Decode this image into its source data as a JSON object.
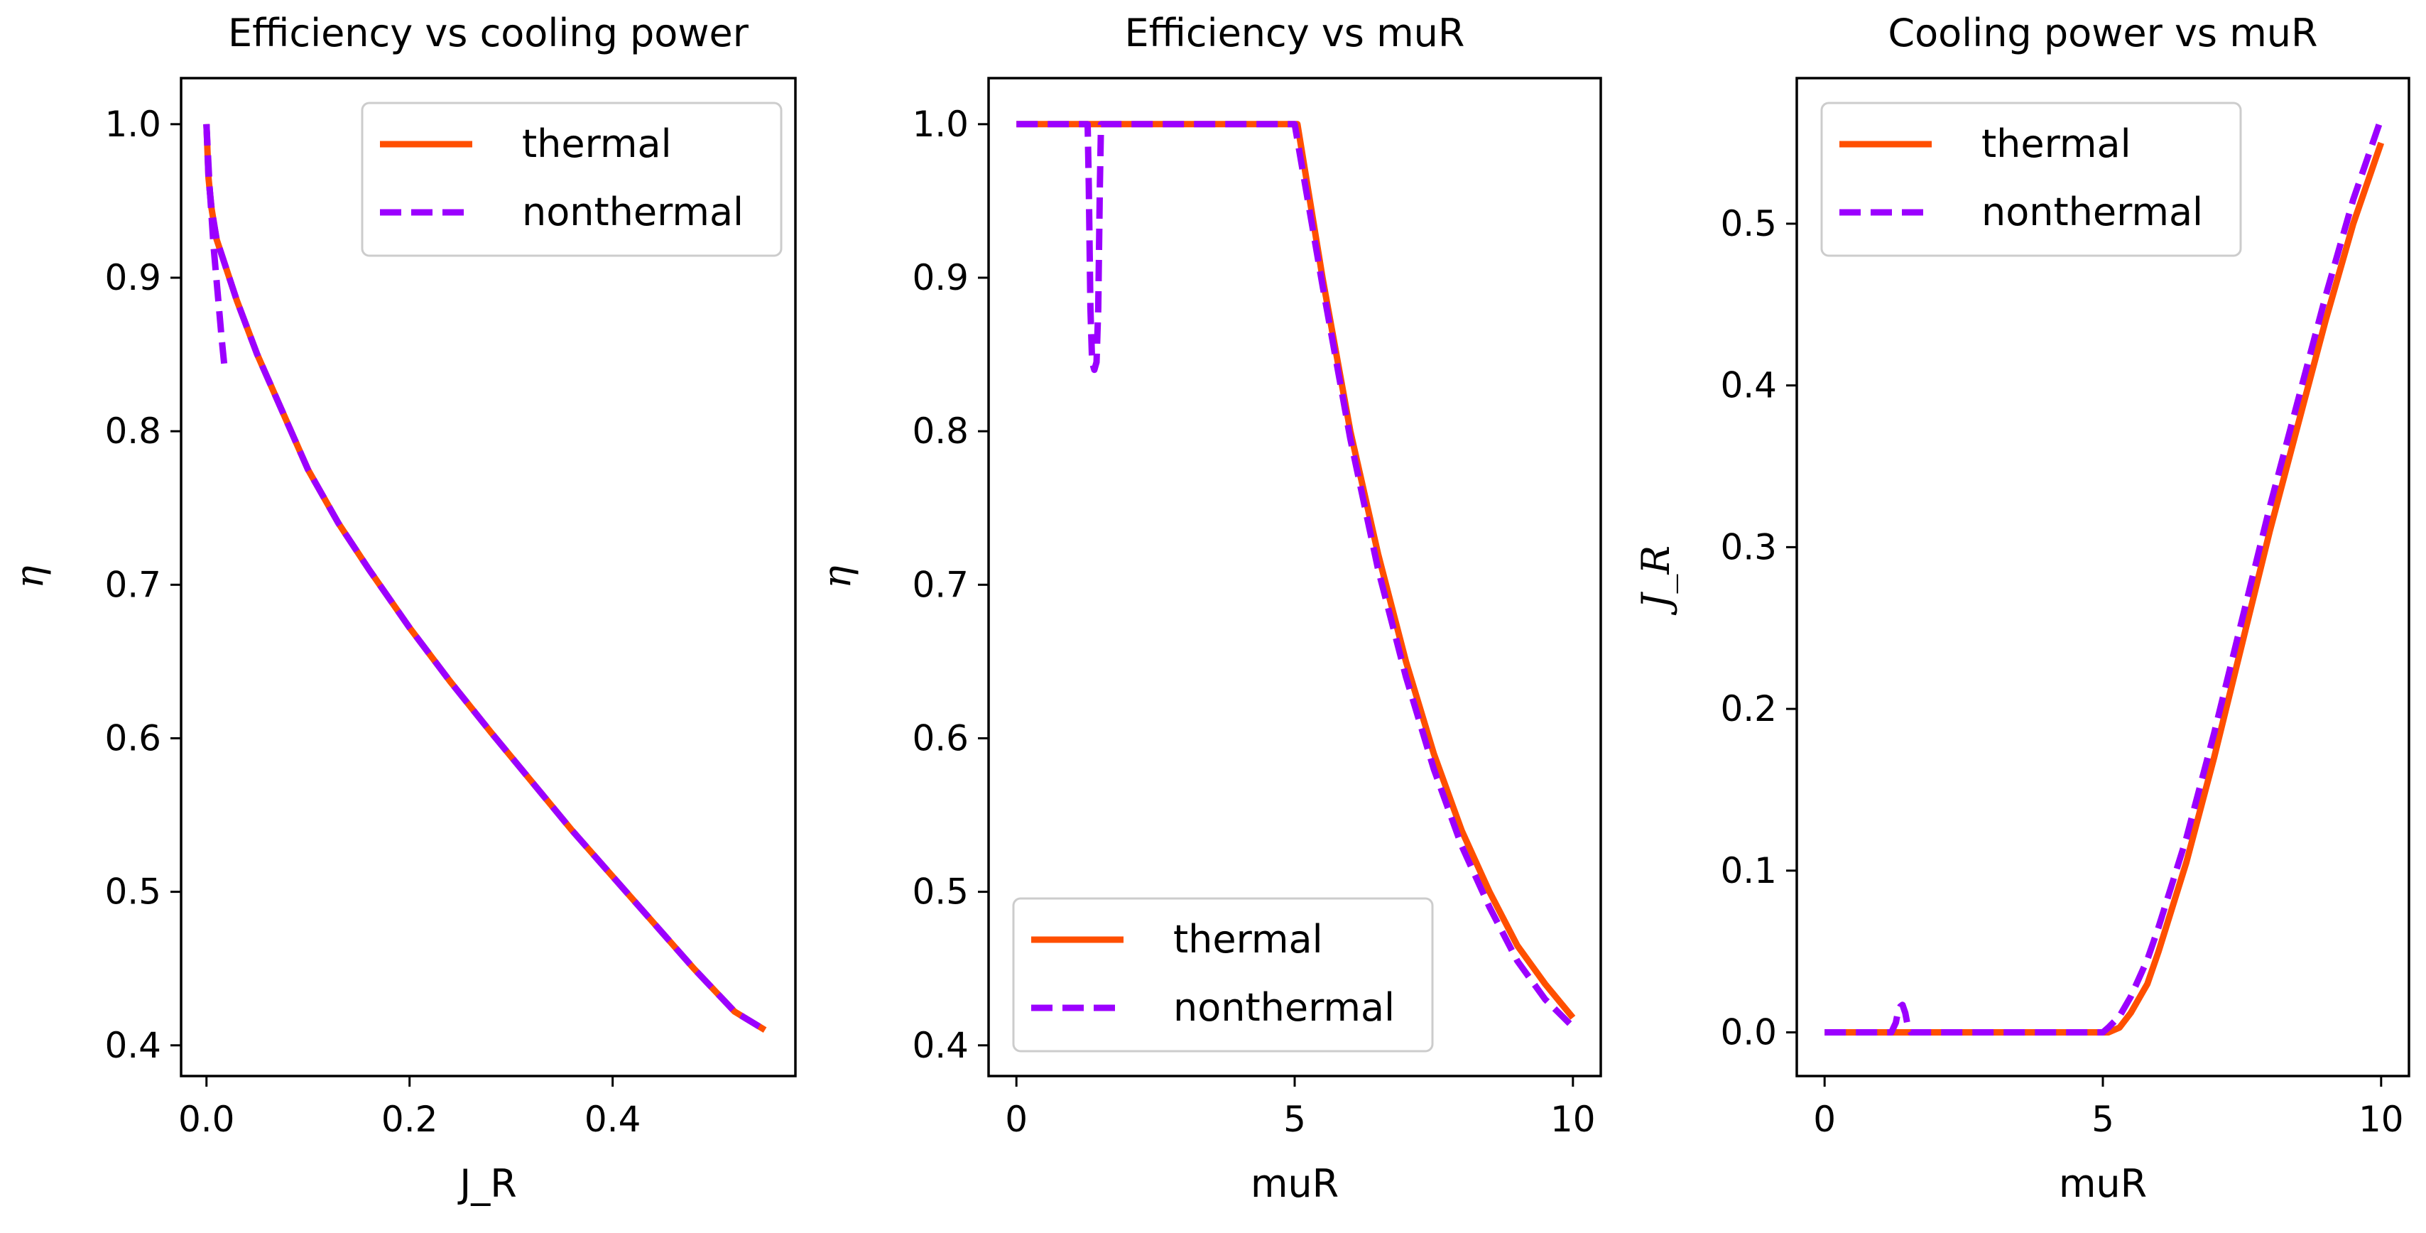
{
  "colors": {
    "thermal": "#ff4f00",
    "nonthermal": "#9b00ff"
  },
  "chart_data": [
    {
      "type": "line",
      "title": "Efficiency vs cooling power",
      "xlabel": "J_R",
      "ylabel": "η",
      "xlim": [
        -0.025,
        0.58
      ],
      "ylim": [
        0.38,
        1.03
      ],
      "xticks": [
        0.0,
        0.2,
        0.4
      ],
      "xtick_labels": [
        "0.0",
        "0.2",
        "0.4"
      ],
      "yticks": [
        0.4,
        0.5,
        0.6,
        0.7,
        0.8,
        0.9,
        1.0
      ],
      "ytick_labels": [
        "0.4",
        "0.5",
        "0.6",
        "0.7",
        "0.8",
        "0.9",
        "1.0"
      ],
      "legend": {
        "position": "upper right",
        "entries": [
          "thermal",
          "nonthermal"
        ]
      },
      "series": [
        {
          "name": "thermal",
          "style": "solid",
          "x": [
            0.0,
            0.002,
            0.005,
            0.01,
            0.02,
            0.03,
            0.05,
            0.07,
            0.1,
            0.13,
            0.16,
            0.2,
            0.24,
            0.28,
            0.32,
            0.36,
            0.4,
            0.44,
            0.48,
            0.52,
            0.55
          ],
          "y": [
            1.0,
            0.965,
            0.945,
            0.925,
            0.905,
            0.885,
            0.85,
            0.82,
            0.775,
            0.74,
            0.71,
            0.672,
            0.637,
            0.604,
            0.572,
            0.54,
            0.51,
            0.48,
            0.45,
            0.422,
            0.41
          ]
        },
        {
          "name": "nonthermal",
          "style": "dashed",
          "x": [
            0.0,
            0.002,
            0.005,
            0.01,
            0.02,
            0.03,
            0.05,
            0.07,
            0.1,
            0.13,
            0.16,
            0.2,
            0.24,
            0.28,
            0.32,
            0.36,
            0.4,
            0.44,
            0.48,
            0.52,
            0.55
          ],
          "y": [
            1.0,
            0.965,
            0.945,
            0.925,
            0.905,
            0.885,
            0.85,
            0.82,
            0.775,
            0.74,
            0.71,
            0.672,
            0.637,
            0.604,
            0.572,
            0.54,
            0.51,
            0.48,
            0.45,
            0.422,
            0.41
          ]
        },
        {
          "name": "nonthermal",
          "style": "dashed",
          "x": [
            0.0,
            0.003,
            0.007,
            0.011,
            0.015,
            0.018
          ],
          "y": [
            1.0,
            0.96,
            0.92,
            0.89,
            0.86,
            0.84
          ]
        }
      ]
    },
    {
      "type": "line",
      "title": "Efficiency vs muR",
      "xlabel": "muR",
      "ylabel": "η",
      "xlim": [
        -0.5,
        10.5
      ],
      "ylim": [
        0.38,
        1.03
      ],
      "xticks": [
        0,
        5,
        10
      ],
      "xtick_labels": [
        "0",
        "5",
        "10"
      ],
      "yticks": [
        0.4,
        0.5,
        0.6,
        0.7,
        0.8,
        0.9,
        1.0
      ],
      "ytick_labels": [
        "0.4",
        "0.5",
        "0.6",
        "0.7",
        "0.8",
        "0.9",
        "1.0"
      ],
      "legend": {
        "position": "lower left",
        "entries": [
          "thermal",
          "nonthermal"
        ]
      },
      "series": [
        {
          "name": "thermal",
          "style": "solid",
          "x": [
            0,
            1,
            2,
            3,
            4,
            5,
            5.05,
            5.5,
            6,
            6.5,
            7,
            7.5,
            8,
            8.5,
            9,
            9.5,
            10
          ],
          "y": [
            1.0,
            1.0,
            1.0,
            1.0,
            1.0,
            1.0,
            1.0,
            0.9,
            0.8,
            0.72,
            0.65,
            0.59,
            0.54,
            0.5,
            0.465,
            0.44,
            0.418
          ]
        },
        {
          "name": "nonthermal",
          "style": "dashed",
          "x": [
            0,
            1.2,
            1.28,
            1.3,
            1.33,
            1.36,
            1.4,
            1.44,
            1.47,
            1.5,
            1.52,
            1.6,
            2,
            3,
            4,
            5,
            5.5,
            6,
            6.5,
            7,
            7.5,
            8,
            8.5,
            9,
            9.5,
            10
          ],
          "y": [
            1.0,
            1.0,
            1.0,
            0.96,
            0.88,
            0.845,
            0.84,
            0.845,
            0.88,
            0.96,
            1.0,
            1.0,
            1.0,
            1.0,
            1.0,
            1.0,
            0.895,
            0.795,
            0.71,
            0.64,
            0.58,
            0.53,
            0.49,
            0.455,
            0.43,
            0.412
          ]
        }
      ]
    },
    {
      "type": "line",
      "title": "Cooling power vs muR",
      "xlabel": "muR",
      "ylabel": "J_R",
      "xlim": [
        -0.5,
        10.5
      ],
      "ylim": [
        -0.027,
        0.59
      ],
      "xticks": [
        0,
        5,
        10
      ],
      "xtick_labels": [
        "0",
        "5",
        "10"
      ],
      "yticks": [
        0.0,
        0.1,
        0.2,
        0.3,
        0.4,
        0.5
      ],
      "ytick_labels": [
        "0.0",
        "0.1",
        "0.2",
        "0.3",
        "0.4",
        "0.5"
      ],
      "legend": {
        "position": "upper left",
        "entries": [
          "thermal",
          "nonthermal"
        ]
      },
      "series": [
        {
          "name": "thermal",
          "style": "solid",
          "x": [
            0,
            1,
            2,
            3,
            4,
            5,
            5.1,
            5.3,
            5.5,
            5.8,
            6,
            6.5,
            7,
            7.5,
            8,
            8.5,
            9,
            9.5,
            10
          ],
          "y": [
            0,
            0,
            0,
            0,
            0,
            0,
            0.0,
            0.003,
            0.012,
            0.03,
            0.05,
            0.105,
            0.17,
            0.24,
            0.31,
            0.375,
            0.44,
            0.5,
            0.55
          ]
        },
        {
          "name": "nonthermal",
          "style": "dashed",
          "x": [
            0,
            1.2,
            1.28,
            1.32,
            1.36,
            1.4,
            1.45,
            1.5,
            1.55,
            1.6,
            2,
            3,
            4,
            5,
            5.1,
            5.3,
            5.5,
            5.8,
            6,
            6.5,
            7,
            7.5,
            8,
            8.5,
            9,
            9.5,
            10
          ],
          "y": [
            0,
            0,
            0.006,
            0.013,
            0.016,
            0.017,
            0.012,
            0.003,
            0,
            0,
            0,
            0,
            0,
            0,
            0.003,
            0.01,
            0.022,
            0.045,
            0.065,
            0.12,
            0.185,
            0.255,
            0.325,
            0.39,
            0.455,
            0.515,
            0.565
          ]
        }
      ]
    }
  ]
}
